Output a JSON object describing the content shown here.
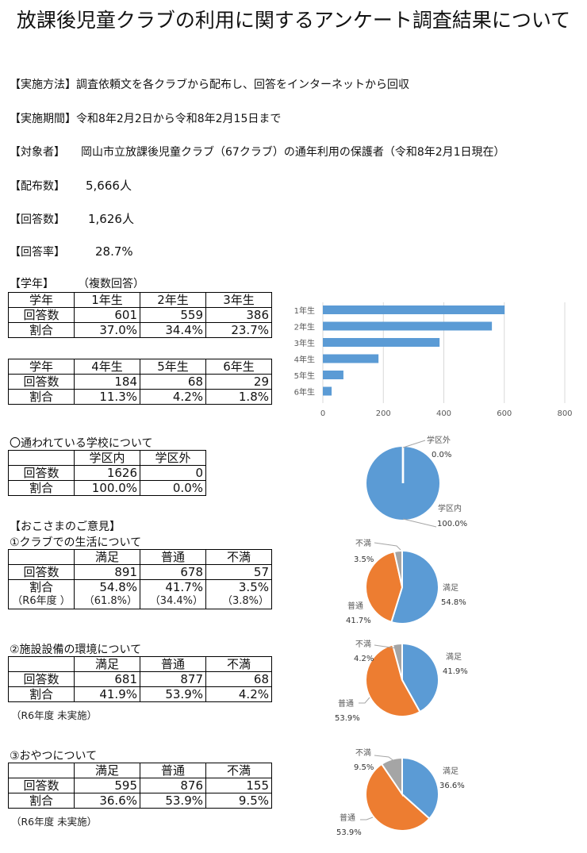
{
  "title": "放課後児童クラブの利用に関するアンケート調査結果について",
  "info": [
    {
      "label": "【実施方法】",
      "value": "調査依頼文を各クラブから配布し、回答をインターネットから回収"
    },
    {
      "label": "【実施期間】",
      "value": "令和8年2月2日から令和8年2月15日まで"
    },
    {
      "label": "【対象者】",
      "value": "岡山市立放課後児童クラブ（67クラブ）の通年利用の保護者（令和8年2月1日現在）"
    },
    {
      "label": "【配布数】",
      "value": "5,666人"
    },
    {
      "label": "【回答数】",
      "value": "1,626人"
    },
    {
      "label": "【回答率】",
      "value": "28.7%"
    }
  ],
  "grade": {
    "heading": "【学年】",
    "note": "（複数回答）",
    "table1": {
      "header": [
        "学年",
        "1年生",
        "2年生",
        "3年生"
      ],
      "counts_label": "回答数",
      "counts": [
        "601",
        "559",
        "386"
      ],
      "ratio_label": "割合",
      "ratios": [
        "37.0%",
        "34.4%",
        "23.7%"
      ]
    },
    "table2": {
      "header": [
        "学年",
        "4年生",
        "5年生",
        "6年生"
      ],
      "counts_label": "回答数",
      "counts": [
        "184",
        "68",
        "29"
      ],
      "ratio_label": "割合",
      "ratios": [
        "11.3%",
        "4.2%",
        "1.8%"
      ]
    }
  },
  "school": {
    "heading": "〇通われている学校について",
    "header": [
      "",
      "学区内",
      "学区外"
    ],
    "counts_label": "回答数",
    "counts": [
      "1626",
      "0"
    ],
    "ratio_label": "割合",
    "ratios": [
      "100.0%",
      "0.0%"
    ]
  },
  "opinions": {
    "heading": "【おこさまのご意見】",
    "q1": {
      "heading": "①クラブでの生活について",
      "header": [
        "",
        "満足",
        "普通",
        "不満"
      ],
      "counts_label": "回答数",
      "counts": [
        "891",
        "678",
        "57"
      ],
      "ratio_label": "割合",
      "ratios": [
        "54.8%",
        "41.7%",
        "3.5%"
      ],
      "prev_label": "（R6年度 ）",
      "prev": [
        "（61.8%）",
        "（34.4%）",
        "（3.8%）"
      ]
    },
    "q2": {
      "heading": "②施設設備の環境について",
      "header": [
        "",
        "満足",
        "普通",
        "不満"
      ],
      "counts_label": "回答数",
      "counts": [
        "681",
        "877",
        "68"
      ],
      "ratio_label": "割合",
      "ratios": [
        "41.9%",
        "53.9%",
        "4.2%"
      ],
      "note": "（R6年度 未実施）"
    },
    "q3": {
      "heading": "③おやつについて",
      "header": [
        "",
        "満足",
        "普通",
        "不満"
      ],
      "counts_label": "回答数",
      "counts": [
        "595",
        "876",
        "155"
      ],
      "ratio_label": "割合",
      "ratios": [
        "36.6%",
        "53.9%",
        "9.5%"
      ],
      "note": "（R6年度 未実施）"
    }
  },
  "colors": {
    "blue": "#5b9bd5",
    "orange": "#ed7d31",
    "gray": "#a5a5a5",
    "grid": "#d9d9d9"
  },
  "chart_data": [
    {
      "type": "bar",
      "orientation": "horizontal",
      "title": "",
      "categories": [
        "1年生",
        "2年生",
        "3年生",
        "4年生",
        "5年生",
        "6年生"
      ],
      "values": [
        601,
        559,
        386,
        184,
        68,
        29
      ],
      "xlim": [
        0,
        800
      ],
      "xticks": [
        0,
        200,
        400,
        600,
        800
      ],
      "grid": true,
      "xlabel": "",
      "ylabel": ""
    },
    {
      "type": "pie",
      "title": "通われている学校",
      "labels": [
        "学区内",
        "学区外"
      ],
      "values": [
        100.0,
        0.0
      ],
      "label_text": [
        "100.0%",
        "0.0%"
      ]
    },
    {
      "type": "pie",
      "title": "クラブでの生活について",
      "labels": [
        "満足",
        "普通",
        "不満"
      ],
      "values": [
        54.8,
        41.7,
        3.5
      ],
      "label_text": [
        "54.8%",
        "41.7%",
        "3.5%"
      ]
    },
    {
      "type": "pie",
      "title": "施設設備の環境について",
      "labels": [
        "満足",
        "普通",
        "不満"
      ],
      "values": [
        41.9,
        53.9,
        4.2
      ],
      "label_text": [
        "41.9%",
        "53.9%",
        "4.2%"
      ]
    },
    {
      "type": "pie",
      "title": "おやつについて",
      "labels": [
        "満足",
        "普通",
        "不満"
      ],
      "values": [
        36.6,
        53.9,
        9.5
      ],
      "label_text": [
        "36.6%",
        "53.9%",
        "9.5%"
      ]
    }
  ]
}
